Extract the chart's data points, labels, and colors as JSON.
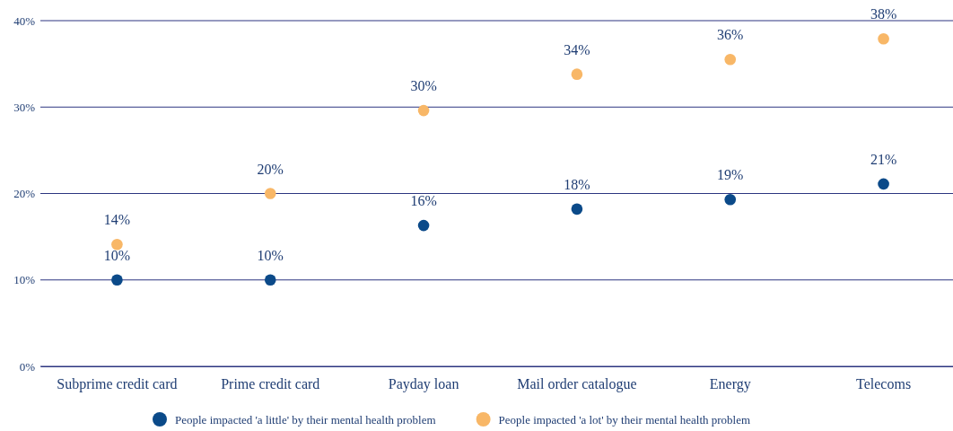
{
  "chart_data": {
    "type": "scatter",
    "categories": [
      "Subprime credit card",
      "Prime credit card",
      "Payday loan",
      "Mail order catalogue",
      "Energy",
      "Telecoms"
    ],
    "series": [
      {
        "name": "People impacted 'a little' by their mental health problem",
        "color": "#0b4a89",
        "values": [
          10,
          10,
          16.3,
          18.2,
          19.3,
          21.1
        ],
        "value_labels": [
          "10%",
          "10%",
          "16%",
          "18%",
          "19%",
          "21%"
        ]
      },
      {
        "name": "People impacted 'a lot' by their mental health problem",
        "color": "#f8b767",
        "values": [
          14.1,
          20,
          29.6,
          33.8,
          35.5,
          37.9
        ],
        "value_labels": [
          "14%",
          "20%",
          "30%",
          "34%",
          "36%",
          "38%"
        ]
      }
    ],
    "ylim": [
      0,
      40
    ],
    "yticks": [
      {
        "value": 0,
        "label": "0%"
      },
      {
        "value": 10,
        "label": "10%"
      },
      {
        "value": 20,
        "label": "20%"
      },
      {
        "value": 30,
        "label": "30%"
      },
      {
        "value": 40,
        "label": "40%"
      }
    ],
    "grid": "y",
    "legend": "bottom",
    "marker": "circle"
  }
}
